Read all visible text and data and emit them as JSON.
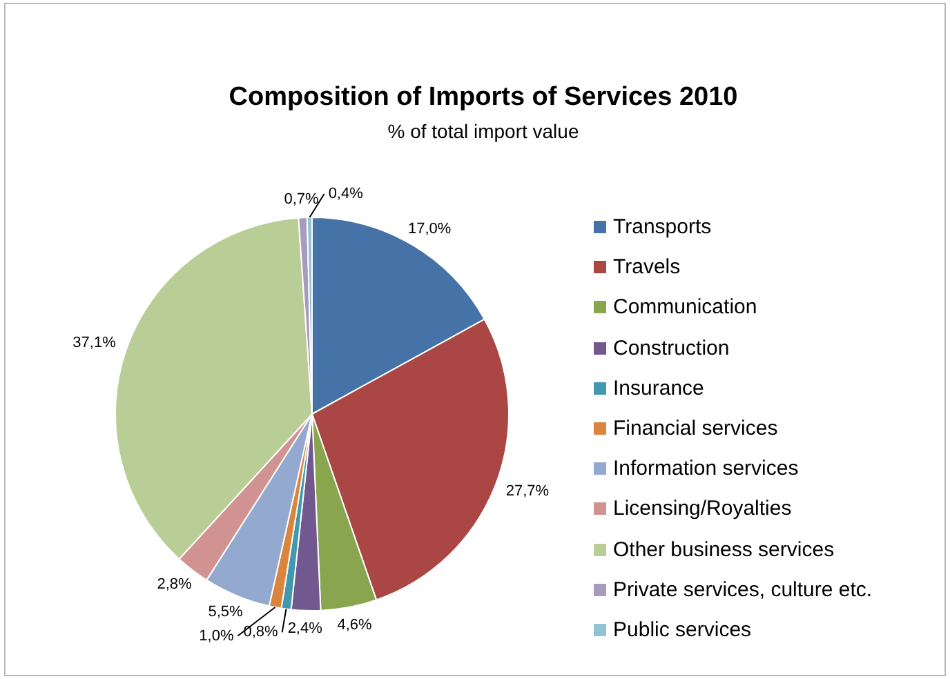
{
  "chart_data": {
    "type": "pie",
    "title": "Composition of Imports of Services 2010",
    "subtitle": "% of total import value",
    "categories": [
      "Transports",
      "Travels",
      "Communication",
      "Construction",
      "Insurance",
      "Financial services",
      "Information services",
      "Licensing/Royalties",
      "Other business services",
      "Private services, culture etc.",
      "Public services"
    ],
    "values": [
      17.0,
      27.7,
      4.6,
      2.4,
      0.8,
      1.0,
      5.5,
      2.8,
      37.1,
      0.7,
      0.4
    ],
    "value_labels": [
      "17,0%",
      "27,7%",
      "4,6%",
      "2,4%",
      "0,8%",
      "1,0%",
      "5,5%",
      "2,8%",
      "37,1%",
      "0,7%",
      "0,4%"
    ],
    "colors": [
      "#4572a7",
      "#aa4643",
      "#89a54e",
      "#71588f",
      "#4198af",
      "#db843d",
      "#93a9cf",
      "#d19392",
      "#b9cd96",
      "#a99bbd",
      "#91c3d5"
    ],
    "legend": "right"
  }
}
